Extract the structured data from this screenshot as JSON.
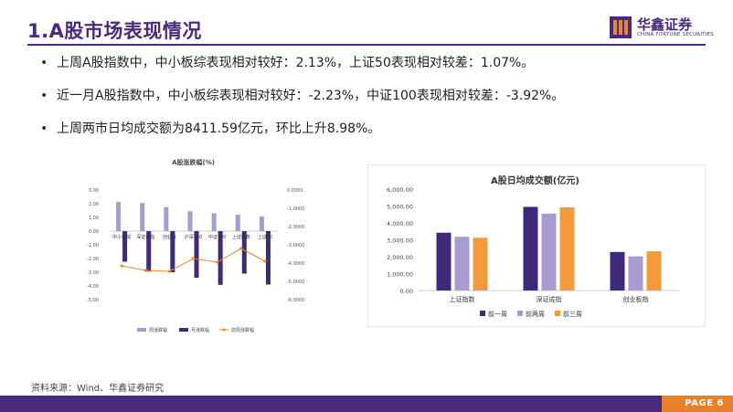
{
  "header": {
    "title": "1.A股市场表现情况",
    "logo_name": "华鑫证券",
    "logo_sub": "CHINA FORTUNE SECURITIES",
    "brand_color": "#4a2a7c",
    "accent_color": "#e8822a"
  },
  "bullets": [
    "上周A股指数中，中小板综表现相对较好：2.13%，上证50表现相对较差：1.07%。",
    "近一月A股指数中，中小板综表现相对较好：-2.23%，中证100表现相对较差：-3.92%。",
    "上周两市日均成交额为8411.59亿元，环比上升8.98%。"
  ],
  "footer": {
    "source": "资料来源：Wind、华鑫证券研究",
    "page": "PAGE 6"
  },
  "chart_data": [
    {
      "type": "bar",
      "title": "A股涨跌幅(%)",
      "categories": [
        "中小板综",
        "深证综指",
        "创业板",
        "沪深300",
        "中证100",
        "上证指数",
        "上证50"
      ],
      "y_left_ticks": [
        "3.00",
        "2.00",
        "1.00",
        "0.00",
        "-1.00",
        "-2.00",
        "-3.00",
        "-4.00",
        "-5.00"
      ],
      "y_right_ticks": [
        "0.0000",
        "-1.0000",
        "-2.0000",
        "-3.0000",
        "-4.0000",
        "-5.0000",
        "-6.0000"
      ],
      "ylim_left": [
        -5,
        3
      ],
      "ylim_right": [
        -6,
        0
      ],
      "series": [
        {
          "name": "周涨跌幅",
          "type": "bar",
          "axis": "left",
          "color": "#a79bd0",
          "values": [
            2.13,
            2.05,
            1.75,
            1.45,
            1.3,
            1.2,
            1.07
          ]
        },
        {
          "name": "月涨跌幅",
          "type": "bar",
          "axis": "left",
          "color": "#3e2a78",
          "values": [
            -2.23,
            -2.95,
            -3.0,
            -3.4,
            -3.92,
            -3.1,
            -3.9
          ]
        },
        {
          "name": "前周涨跌幅",
          "type": "line",
          "axis": "right",
          "color": "#f0882a",
          "values": [
            -4.15,
            -4.4,
            -4.45,
            -3.75,
            -3.95,
            -3.2,
            -3.9
          ]
        }
      ]
    },
    {
      "type": "bar",
      "title": "A股日均成交额(亿元)",
      "categories": [
        "上证指数",
        "深证成指",
        "创业板指"
      ],
      "y_ticks": [
        "6,000.00",
        "5,000.00",
        "4,000.00",
        "3,000.00",
        "2,000.00",
        "1,000.00",
        "0.00"
      ],
      "ylim": [
        0,
        6000
      ],
      "series": [
        {
          "name": "前一周",
          "color": "#3e2a78",
          "values": [
            3420,
            4950,
            2280
          ]
        },
        {
          "name": "前两周",
          "color": "#a79bd0",
          "values": [
            3180,
            4550,
            2020
          ]
        },
        {
          "name": "前三周",
          "color": "#f39a3a",
          "values": [
            3120,
            4920,
            2320
          ]
        }
      ]
    }
  ]
}
